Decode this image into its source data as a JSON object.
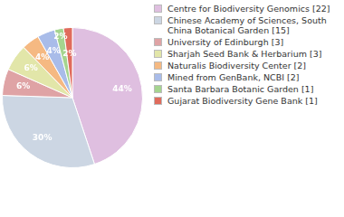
{
  "chart_data": {
    "type": "pie",
    "categories": [
      "Centre for Biodiversity Genomics [22]",
      "Chinese Academy of Sciences, South China Botanical Garden [15]",
      "University of Edinburgh [3]",
      "Sharjah Seed Bank & Herbarium [3]",
      "Naturalis Biodiversity Center [2]",
      "Mined from GenBank, NCBI [2]",
      "Santa Barbara Botanic Garden [1]",
      "Gujarat Biodiversity Gene Bank [1]"
    ],
    "values": [
      44,
      30,
      6,
      6,
      4,
      4,
      2,
      2
    ],
    "value_labels": [
      "44%",
      "30%",
      "6%",
      "6%",
      "4%",
      "4%",
      "2%",
      "2%"
    ],
    "colors": [
      "#dfbfe0",
      "#ccd6e3",
      "#dfa3a5",
      "#e2e6a9",
      "#f5b982",
      "#a9bce9",
      "#a5d48f",
      "#e06b5c"
    ],
    "data_labels": true,
    "legend": "right"
  }
}
